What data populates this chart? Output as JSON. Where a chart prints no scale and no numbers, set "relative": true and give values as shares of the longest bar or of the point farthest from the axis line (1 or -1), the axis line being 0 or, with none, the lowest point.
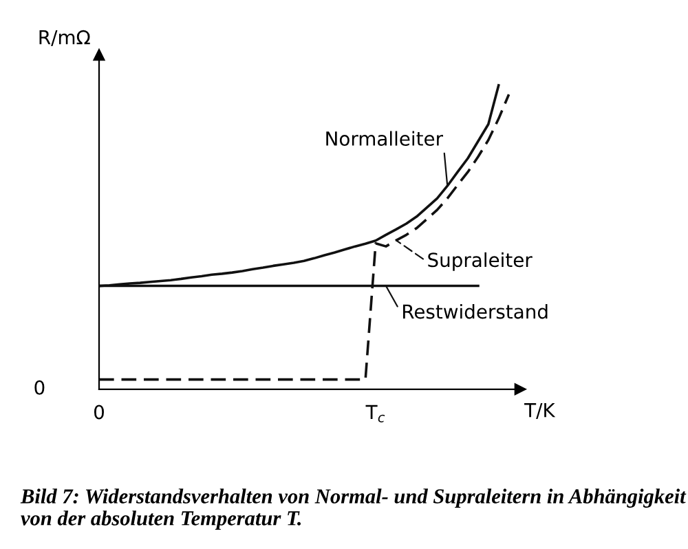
{
  "chart_data": {
    "type": "line",
    "relative": true,
    "xlabel": "T/K",
    "ylabel": "R/mΩ",
    "tick_labels": "x",
    "marker": "none",
    "legend": "right",
    "categories": [
      "0",
      null,
      null,
      null,
      null,
      null,
      null,
      null,
      null,
      null,
      null,
      null,
      null,
      null,
      null,
      null,
      null,
      null,
      null,
      null,
      null,
      null,
      null,
      null,
      null,
      null,
      null,
      "T$_{c}$",
      null,
      null,
      null,
      null,
      null,
      null,
      null,
      null,
      null,
      null,
      null,
      null,
      null
    ],
    "series": [
      {
        "name": "Normalleiter",
        "color": "#111111",
        "line_style": "solid",
        "values": [
          0.34,
          0.342,
          0.345,
          0.348,
          0.35,
          0.353,
          0.356,
          0.359,
          0.363,
          0.368,
          0.372,
          0.377,
          0.38,
          0.384,
          0.389,
          0.395,
          0.4,
          0.406,
          0.411,
          0.416,
          0.422,
          0.431,
          0.441,
          0.45,
          0.46,
          0.47,
          0.479,
          0.489,
          0.508,
          0.526,
          0.545,
          0.568,
          0.598,
          0.628,
          0.669,
          0.715,
          0.76,
          0.816,
          0.872,
          1.0,
          null
        ]
      },
      {
        "name": "Supraleiter",
        "color": "#111111",
        "line_style": "dashed",
        "values": [
          0.032,
          0.032,
          0.032,
          0.032,
          0.032,
          0.032,
          0.032,
          0.032,
          0.032,
          0.032,
          0.032,
          0.032,
          0.032,
          0.032,
          0.032,
          0.032,
          0.032,
          0.032,
          0.032,
          0.032,
          0.032,
          0.032,
          0.032,
          0.032,
          0.032,
          0.032,
          0.032,
          0.48,
          0.47,
          0.49,
          0.508,
          0.53,
          0.56,
          0.59,
          0.628,
          0.672,
          0.715,
          0.765,
          0.82,
          0.89,
          0.97
        ]
      },
      {
        "name": "Restwiderstand",
        "color": "#111111",
        "line_style": "solid",
        "values": [
          0.34,
          0.34,
          0.34,
          0.34,
          0.34,
          0.34,
          0.34,
          0.34,
          0.34,
          0.34,
          0.34,
          0.34,
          0.34,
          0.34,
          0.34,
          0.34,
          0.34,
          0.34,
          0.34,
          0.34,
          0.34,
          0.34,
          0.34,
          0.34,
          0.34,
          0.34,
          0.34,
          0.34,
          0.34,
          0.34,
          0.34,
          0.34,
          0.34,
          0.34,
          0.34,
          0.34,
          0.34,
          0.34,
          null,
          null,
          null
        ]
      }
    ],
    "annotations": [
      "0",
      "Bild 7: Widerstandsverhalten von Normal- und Supraleitern in Abhängigkeit von der absoluten Temperatur T."
    ]
  }
}
